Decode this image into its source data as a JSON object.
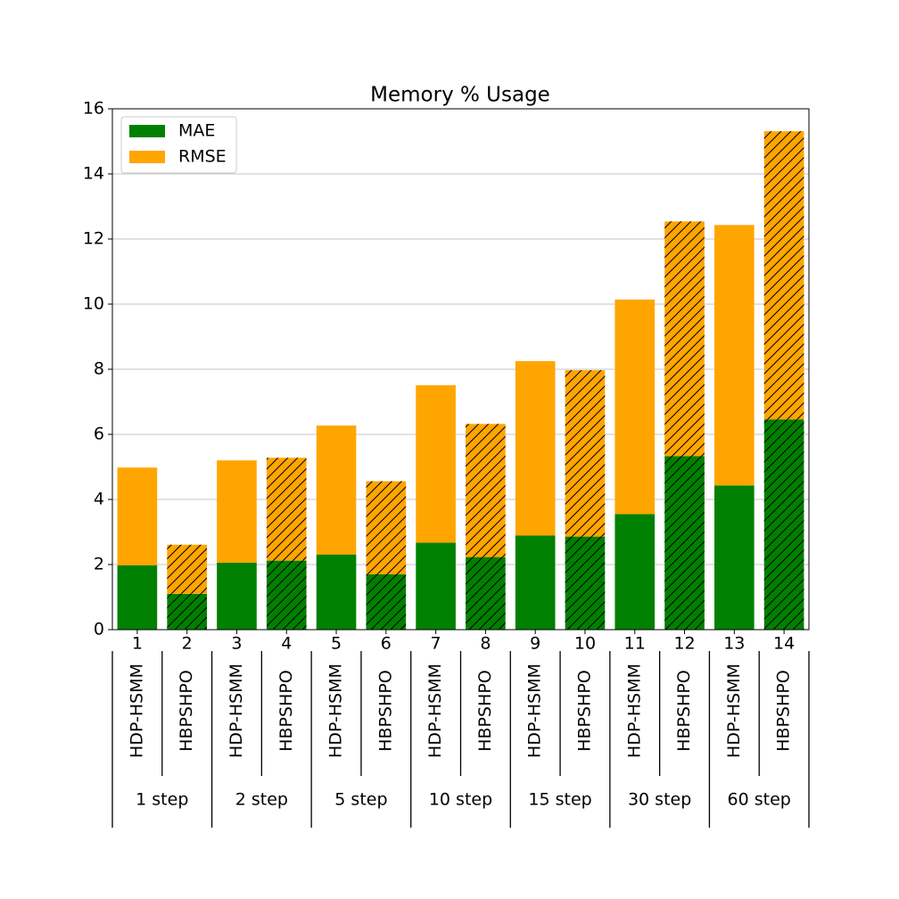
{
  "chart_data": {
    "type": "stacked_bar",
    "title": "Memory % Usage",
    "categories": [
      "1",
      "2",
      "3",
      "4",
      "5",
      "6",
      "7",
      "8",
      "9",
      "10",
      "11",
      "12",
      "13",
      "14"
    ],
    "methods": [
      "HDP-HSMM",
      "HBPSHPO",
      "HDP-HSMM",
      "HBPSHPO",
      "HDP-HSMM",
      "HBPSHPO",
      "HDP-HSMM",
      "HBPSHPO",
      "HDP-HSMM",
      "HBPSHPO",
      "HDP-HSMM",
      "HBPSHPO",
      "HDP-HSMM",
      "HBPSHPO"
    ],
    "groups": [
      "1 step",
      "2 step",
      "5 step",
      "10 step",
      "15 step",
      "30 step",
      "60 step"
    ],
    "hatched": [
      false,
      true,
      false,
      true,
      false,
      true,
      false,
      true,
      false,
      true,
      false,
      true,
      false,
      true
    ],
    "series": [
      {
        "name": "MAE",
        "color": "#008000",
        "values": [
          1.98,
          1.1,
          2.06,
          2.12,
          2.31,
          1.7,
          2.67,
          2.23,
          2.89,
          2.86,
          3.55,
          5.33,
          4.43,
          6.46
        ]
      },
      {
        "name": "RMSE",
        "color": "#ffa500",
        "values": [
          3.0,
          1.51,
          3.14,
          3.16,
          3.96,
          2.86,
          4.84,
          4.09,
          5.36,
          5.11,
          6.59,
          7.21,
          8.0,
          8.85
        ]
      }
    ],
    "ylim": [
      0,
      16
    ],
    "yticks": [
      0,
      2,
      4,
      6,
      8,
      10,
      12,
      14,
      16
    ],
    "grid": true,
    "legend": "upper left"
  }
}
